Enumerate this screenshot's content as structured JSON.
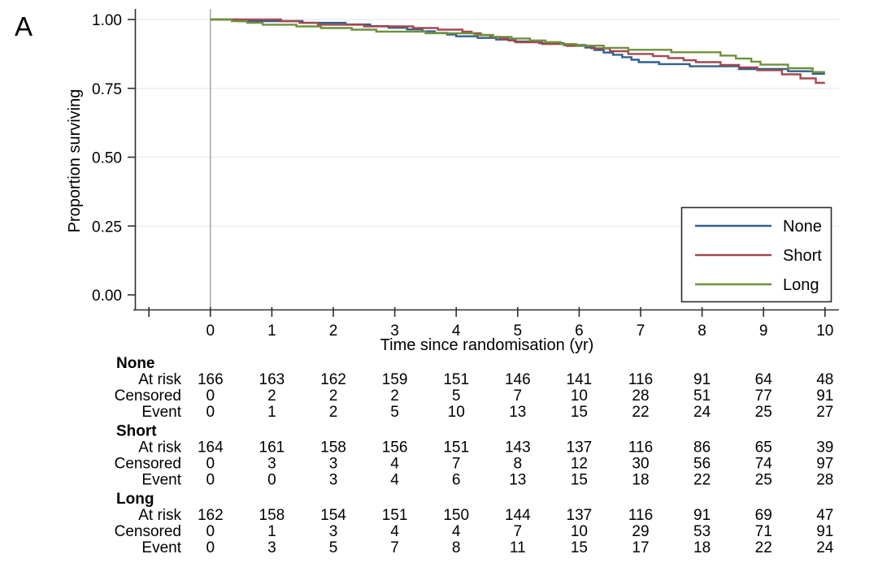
{
  "panel_label": "A",
  "chart_data": {
    "type": "line",
    "subtype": "kaplan-meier-step-curves",
    "title": "",
    "xlabel": "Time since randomisation (yr)",
    "ylabel": "Proportion surviving",
    "xlim": [
      -1.25,
      10.25
    ],
    "ylim": [
      0,
      1.05
    ],
    "x_ticks": [
      0,
      1,
      2,
      3,
      4,
      5,
      6,
      7,
      8,
      9,
      10
    ],
    "x_minor_ticks": [
      -1
    ],
    "y_ticks": [
      0,
      0.25,
      0.5,
      0.75,
      1
    ],
    "y_tick_labels": [
      "0.00",
      "0.25",
      "0.50",
      "0.75",
      "1.00"
    ],
    "grid": "horizontal-gridlines-at-0.25-0.50-0.75-1.00",
    "reference_line_x": 0,
    "legend_position": "bottom-right",
    "end_time": 10,
    "series": [
      {
        "name": "None",
        "color": "#30608f",
        "steps": [
          [
            0,
            1.0
          ],
          [
            0.45,
            0.994
          ],
          [
            1.5,
            0.988
          ],
          [
            2.2,
            0.982
          ],
          [
            2.6,
            0.976
          ],
          [
            2.9,
            0.97
          ],
          [
            3.2,
            0.964
          ],
          [
            3.45,
            0.957
          ],
          [
            3.65,
            0.951
          ],
          [
            3.85,
            0.945
          ],
          [
            4.0,
            0.939
          ],
          [
            4.35,
            0.933
          ],
          [
            4.65,
            0.927
          ],
          [
            4.95,
            0.92
          ],
          [
            5.35,
            0.914
          ],
          [
            5.75,
            0.907
          ],
          [
            6.1,
            0.898
          ],
          [
            6.25,
            0.889
          ],
          [
            6.4,
            0.88
          ],
          [
            6.55,
            0.872
          ],
          [
            6.7,
            0.863
          ],
          [
            6.85,
            0.854
          ],
          [
            6.97,
            0.845
          ],
          [
            7.3,
            0.838
          ],
          [
            7.8,
            0.83
          ],
          [
            8.6,
            0.82
          ],
          [
            9.4,
            0.812
          ],
          [
            9.8,
            0.803
          ]
        ]
      },
      {
        "name": "Short",
        "color": "#a34850",
        "steps": [
          [
            0,
            1.0
          ],
          [
            1.15,
            0.994
          ],
          [
            1.45,
            0.988
          ],
          [
            1.75,
            0.981
          ],
          [
            2.5,
            0.975
          ],
          [
            3.3,
            0.969
          ],
          [
            3.7,
            0.963
          ],
          [
            4.1,
            0.956
          ],
          [
            4.25,
            0.95
          ],
          [
            4.4,
            0.943
          ],
          [
            4.55,
            0.937
          ],
          [
            4.7,
            0.93
          ],
          [
            4.85,
            0.924
          ],
          [
            4.97,
            0.917
          ],
          [
            5.4,
            0.911
          ],
          [
            5.8,
            0.904
          ],
          [
            6.2,
            0.895
          ],
          [
            6.5,
            0.885
          ],
          [
            6.8,
            0.875
          ],
          [
            7.2,
            0.867
          ],
          [
            7.45,
            0.86
          ],
          [
            7.7,
            0.852
          ],
          [
            7.9,
            0.845
          ],
          [
            8.3,
            0.835
          ],
          [
            8.6,
            0.826
          ],
          [
            8.9,
            0.816
          ],
          [
            9.3,
            0.801
          ],
          [
            9.6,
            0.786
          ],
          [
            9.85,
            0.77
          ]
        ]
      },
      {
        "name": "Long",
        "color": "#6e913c",
        "steps": [
          [
            0,
            1.0
          ],
          [
            0.35,
            0.994
          ],
          [
            0.6,
            0.988
          ],
          [
            0.85,
            0.981
          ],
          [
            1.4,
            0.975
          ],
          [
            1.8,
            0.969
          ],
          [
            2.3,
            0.963
          ],
          [
            2.7,
            0.956
          ],
          [
            3.5,
            0.95
          ],
          [
            4.3,
            0.944
          ],
          [
            4.6,
            0.937
          ],
          [
            4.9,
            0.931
          ],
          [
            5.2,
            0.924
          ],
          [
            5.45,
            0.918
          ],
          [
            5.7,
            0.911
          ],
          [
            5.95,
            0.905
          ],
          [
            6.4,
            0.897
          ],
          [
            6.8,
            0.89
          ],
          [
            7.5,
            0.881
          ],
          [
            8.3,
            0.869
          ],
          [
            8.55,
            0.858
          ],
          [
            8.8,
            0.847
          ],
          [
            8.95,
            0.836
          ],
          [
            9.4,
            0.823
          ],
          [
            9.8,
            0.809
          ]
        ]
      }
    ]
  },
  "risk_table": {
    "time_points": [
      0,
      1,
      2,
      3,
      4,
      5,
      6,
      7,
      8,
      9,
      10
    ],
    "row_labels": [
      "At risk",
      "Censored",
      "Event"
    ],
    "groups": [
      {
        "name": "None",
        "values": [
          [
            166,
            163,
            162,
            159,
            151,
            146,
            141,
            116,
            91,
            64,
            48
          ],
          [
            0,
            2,
            2,
            2,
            5,
            7,
            10,
            28,
            51,
            77,
            91
          ],
          [
            0,
            1,
            2,
            5,
            10,
            13,
            15,
            22,
            24,
            25,
            27
          ]
        ]
      },
      {
        "name": "Short",
        "values": [
          [
            164,
            161,
            158,
            156,
            151,
            143,
            137,
            116,
            86,
            65,
            39
          ],
          [
            0,
            3,
            3,
            4,
            7,
            8,
            12,
            30,
            56,
            74,
            97
          ],
          [
            0,
            0,
            3,
            4,
            6,
            13,
            15,
            18,
            22,
            25,
            28
          ]
        ]
      },
      {
        "name": "Long",
        "values": [
          [
            162,
            158,
            154,
            151,
            150,
            144,
            137,
            116,
            91,
            69,
            47
          ],
          [
            0,
            1,
            3,
            4,
            4,
            7,
            10,
            29,
            53,
            71,
            91
          ],
          [
            0,
            3,
            5,
            7,
            8,
            11,
            15,
            17,
            18,
            22,
            24
          ]
        ]
      }
    ]
  },
  "colors": {
    "axis": "#2f2f2f",
    "grid": "#e2ecf1",
    "reference_line": "#9a9a9a",
    "legend_border": "#2b2b2b",
    "background": "#ffffff",
    "text": "#000000"
  }
}
